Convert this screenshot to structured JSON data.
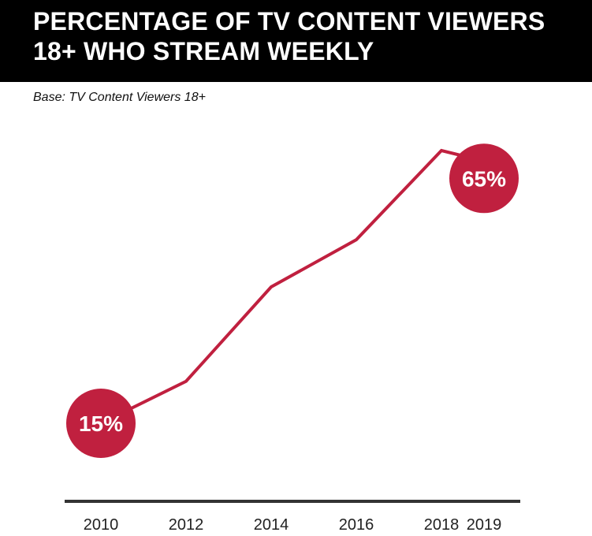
{
  "chart_data": {
    "type": "line",
    "title": "PERCENTAGE OF TV CONTENT VIEWERS 18+ WHO STREAM WEEKLY",
    "subtitle": "Base: TV Content Viewers 18+",
    "xlabel": "",
    "ylabel": "",
    "categories": [
      "2010",
      "2012",
      "2014",
      "2016",
      "2018",
      "2019"
    ],
    "x": [
      2010,
      2012,
      2014,
      2016,
      2018,
      2019
    ],
    "ticks": [
      "2010",
      "2012",
      "2014",
      "2016",
      "2018",
      "2019"
    ],
    "series": [
      {
        "values": [
          15,
          23,
          41,
          50,
          67,
          65
        ]
      }
    ],
    "data_labels": [
      {
        "index": 0,
        "text": "15%"
      },
      {
        "index": 5,
        "text": "65%"
      }
    ],
    "ylim": [
      0,
      73
    ],
    "grid": false,
    "legend": "none",
    "colors": {
      "line": "#c0203f",
      "marker": "#c0203f",
      "axis": "#333333",
      "header_bg": "#000000",
      "header_text": "#ffffff"
    }
  }
}
